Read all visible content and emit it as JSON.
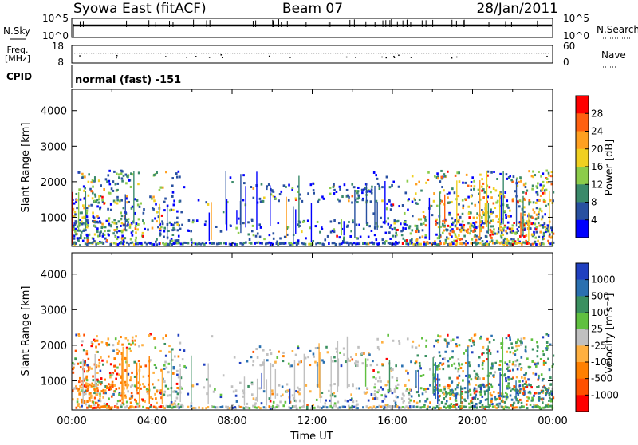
{
  "header": {
    "station": "Syowa East (fitACF)",
    "beam": "Beam 07",
    "date": "28/Jan/2011"
  },
  "housekeeping": {
    "nsky_label": "N.Sky",
    "nsearch_label": "N.Search",
    "nsky_ticks": [
      "10^5",
      "10^0"
    ],
    "nsearch_ticks": [
      "10^5",
      "10^0"
    ],
    "freq_label": "Freq.",
    "freq_unit": "[MHz]",
    "freq_ticks": [
      "18",
      "8"
    ],
    "nave_label": "Nave",
    "nave_ticks": [
      "60",
      "0"
    ],
    "cpid_label": "CPID",
    "cpid_text": "normal (fast) -151"
  },
  "chart_data": [
    {
      "type": "heatmap",
      "panel": "power",
      "ylabel": "Slant Range [km]",
      "xlabel": "",
      "y_ticks": [
        1000,
        2000,
        3000,
        4000
      ],
      "ylim": [
        180,
        4600
      ],
      "xlim": [
        0,
        24
      ],
      "x_tick_labels": [],
      "colorbar": {
        "label": "Power [dB]",
        "ticks": [
          "4",
          "8",
          "12",
          "16",
          "20",
          "24",
          "28"
        ],
        "colors": [
          "#0000ff",
          "#2850a0",
          "#3a8a6a",
          "#8ccc4a",
          "#f0d020",
          "#ffa020",
          "#ff6010",
          "#ff0000"
        ]
      }
    },
    {
      "type": "heatmap",
      "panel": "velocity",
      "ylabel": "Slant Range [km]",
      "xlabel": "Time UT",
      "y_ticks": [
        1000,
        2000,
        3000,
        4000
      ],
      "ylim": [
        180,
        4600
      ],
      "xlim": [
        0,
        24
      ],
      "x_tick_labels": [
        "00:00",
        "04:00",
        "08:00",
        "12:00",
        "16:00",
        "20:00",
        "00:00"
      ],
      "colorbar": {
        "label": "Velocity [m s⁻¹]",
        "ticks": [
          "1000",
          "500",
          "100",
          "25",
          "-25",
          "-100",
          "-500",
          "-1000"
        ],
        "colors": [
          "#2040c0",
          "#2a70b0",
          "#3a9060",
          "#60c040",
          "#c0c0c0",
          "#ffb040",
          "#ff8000",
          "#ff5000",
          "#ff0000"
        ]
      }
    }
  ]
}
